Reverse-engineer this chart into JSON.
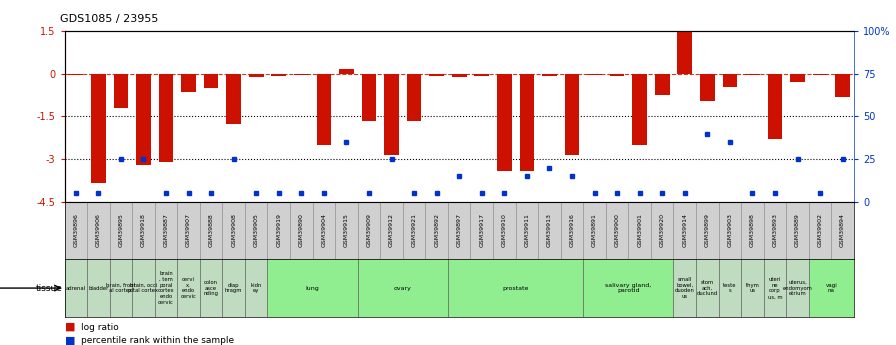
{
  "title": "GDS1085 / 23955",
  "samples": [
    "GSM39896",
    "GSM39906",
    "GSM39895",
    "GSM39918",
    "GSM39887",
    "GSM39907",
    "GSM39888",
    "GSM39908",
    "GSM39905",
    "GSM39919",
    "GSM39890",
    "GSM39904",
    "GSM39915",
    "GSM39909",
    "GSM39912",
    "GSM39921",
    "GSM39892",
    "GSM39897",
    "GSM39917",
    "GSM39910",
    "GSM39911",
    "GSM39913",
    "GSM39916",
    "GSM39891",
    "GSM39900",
    "GSM39901",
    "GSM39920",
    "GSM39914",
    "GSM39899",
    "GSM39903",
    "GSM39898",
    "GSM39893",
    "GSM39889",
    "GSM39902",
    "GSM39894"
  ],
  "log_ratio": [
    -0.05,
    -3.85,
    -1.2,
    -3.2,
    -3.1,
    -0.65,
    -0.5,
    -1.75,
    -0.12,
    -0.08,
    -0.05,
    -2.5,
    0.15,
    -1.65,
    -2.85,
    -1.65,
    -0.08,
    -0.12,
    -0.08,
    -3.4,
    -3.4,
    -0.08,
    -2.85,
    -0.05,
    -0.08,
    -2.5,
    -0.75,
    1.5,
    -0.95,
    -0.45,
    -0.05,
    -2.3,
    -0.28,
    -0.05,
    -0.8
  ],
  "percentile": [
    5,
    5,
    25,
    25,
    5,
    5,
    5,
    25,
    5,
    5,
    5,
    5,
    35,
    5,
    25,
    5,
    5,
    15,
    5,
    5,
    15,
    20,
    15,
    5,
    5,
    5,
    5,
    5,
    40,
    35,
    5,
    5,
    25,
    5,
    25
  ],
  "tissues": [
    {
      "label": "adrenal",
      "start": 0,
      "end": 1,
      "color": "#c0dcc0"
    },
    {
      "label": "bladder",
      "start": 1,
      "end": 2,
      "color": "#c0dcc0"
    },
    {
      "label": "brain, front\nal cortex",
      "start": 2,
      "end": 3,
      "color": "#c0dcc0"
    },
    {
      "label": "brain, occi\npital cortex",
      "start": 3,
      "end": 4,
      "color": "#c0dcc0"
    },
    {
      "label": "brain\n, tem\nporal\ncortex\nendo\ncervic",
      "start": 4,
      "end": 5,
      "color": "#c0dcc0"
    },
    {
      "label": "cervi\nx,\nendo\ncervic",
      "start": 5,
      "end": 6,
      "color": "#c0dcc0"
    },
    {
      "label": "colon\nasce\nnding",
      "start": 6,
      "end": 7,
      "color": "#c0dcc0"
    },
    {
      "label": "diap\nhragm",
      "start": 7,
      "end": 8,
      "color": "#c0dcc0"
    },
    {
      "label": "kidn\ney",
      "start": 8,
      "end": 9,
      "color": "#c0dcc0"
    },
    {
      "label": "lung",
      "start": 9,
      "end": 13,
      "color": "#90ee90"
    },
    {
      "label": "ovary",
      "start": 13,
      "end": 17,
      "color": "#90ee90"
    },
    {
      "label": "prostate",
      "start": 17,
      "end": 23,
      "color": "#90ee90"
    },
    {
      "label": "salivary gland,\nparotid",
      "start": 23,
      "end": 27,
      "color": "#90ee90"
    },
    {
      "label": "small\nbowel,\nduoden\nus",
      "start": 27,
      "end": 28,
      "color": "#c0dcc0"
    },
    {
      "label": "stom\nach,\nduclund",
      "start": 28,
      "end": 29,
      "color": "#c0dcc0"
    },
    {
      "label": "teste\ns",
      "start": 29,
      "end": 30,
      "color": "#c0dcc0"
    },
    {
      "label": "thym\nus",
      "start": 30,
      "end": 31,
      "color": "#c0dcc0"
    },
    {
      "label": "uteri\nne\ncorp\nus, m",
      "start": 31,
      "end": 32,
      "color": "#c0dcc0"
    },
    {
      "label": "uterus,\nendomyom\netrium",
      "start": 32,
      "end": 33,
      "color": "#c0dcc0"
    },
    {
      "label": "vagi\nna",
      "start": 33,
      "end": 35,
      "color": "#90ee90"
    }
  ],
  "ylim": [
    -4.5,
    1.5
  ],
  "bar_color": "#cc1100",
  "dot_color": "#0033cc",
  "bg_color": "#ffffff",
  "sample_label_bg": "#d0d0d0",
  "left_yticks": [
    1.5,
    0.0,
    -1.5,
    -3.0,
    -4.5
  ],
  "right_yticks": [
    100,
    75,
    50,
    25,
    0
  ],
  "right_yticklabels": [
    "100%",
    "75",
    "50",
    "25",
    "0"
  ]
}
